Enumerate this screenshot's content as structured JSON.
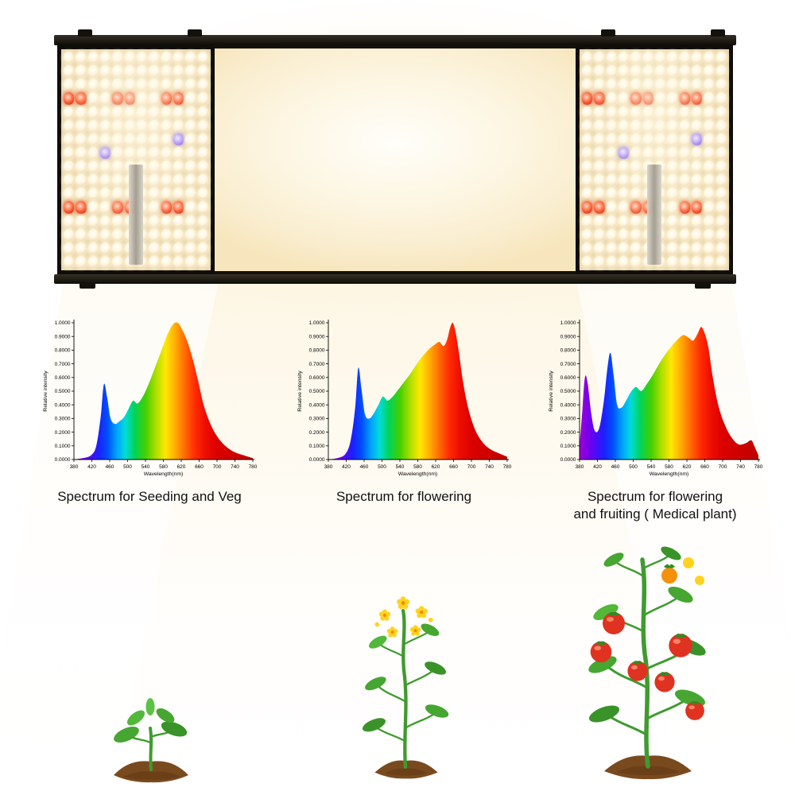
{
  "page": {
    "background": "#ffffff",
    "beam_color": "#fbeccb"
  },
  "fixture": {
    "label": "LED grow light bar with two quantum boards and central light-emitting area",
    "frame_color": "#16130e",
    "panel": {
      "rows": 16,
      "cols": 12,
      "red_rows": [
        3,
        11
      ],
      "red_cols": [
        0,
        1,
        4,
        5,
        8,
        9
      ],
      "violet_cells": [
        [
          6,
          9
        ],
        [
          7,
          3
        ]
      ],
      "board_color": "#e8d7ae",
      "led_white": "#fff6dd",
      "led_red": "#e03318",
      "strip_color": "#b7b1a4"
    }
  },
  "axis": {
    "y_ticks": [
      "0.0000",
      "0.1000",
      "0.2000",
      "0.3000",
      "0.4000",
      "0.5000",
      "0.6000",
      "0.7000",
      "0.8000",
      "0.9000",
      "1.0000"
    ],
    "x_ticks": [
      380,
      420,
      460,
      500,
      540,
      580,
      620,
      660,
      700,
      740,
      780
    ],
    "xlabel": "Wavelength(nm)",
    "ylabel": "Relative intensity"
  },
  "charts": [
    {
      "caption": "Spectrum for Seeding and Veg"
    },
    {
      "caption": "Spectrum for flowering"
    },
    {
      "caption": "Spectrum for flowering\nand fruiting ( Medical plant)"
    }
  ],
  "spectrum_gradient": [
    {
      "wl": 380,
      "color": "#a100d8"
    },
    {
      "wl": 405,
      "color": "#6a00f0"
    },
    {
      "wl": 435,
      "color": "#1a20ff"
    },
    {
      "wl": 455,
      "color": "#0050ff"
    },
    {
      "wl": 475,
      "color": "#00a0ff"
    },
    {
      "wl": 495,
      "color": "#00dcd8"
    },
    {
      "wl": 515,
      "color": "#00d35a"
    },
    {
      "wl": 540,
      "color": "#44cf00"
    },
    {
      "wl": 565,
      "color": "#b5e000"
    },
    {
      "wl": 585,
      "color": "#ffe800"
    },
    {
      "wl": 605,
      "color": "#ffb000"
    },
    {
      "wl": 625,
      "color": "#ff7300"
    },
    {
      "wl": 650,
      "color": "#ff2d00"
    },
    {
      "wl": 672,
      "color": "#ef0f00"
    },
    {
      "wl": 700,
      "color": "#dc0000"
    },
    {
      "wl": 780,
      "color": "#bf0000"
    }
  ],
  "chart_data": [
    {
      "type": "area",
      "title": "Spectrum for Seeding and Veg",
      "xlabel": "Wavelength(nm)",
      "ylabel": "Relative intensity",
      "xlim": [
        380,
        780
      ],
      "ylim": [
        0,
        1
      ],
      "x": [
        380,
        400,
        418,
        430,
        440,
        447,
        454,
        462,
        472,
        482,
        492,
        502,
        512,
        522,
        534,
        548,
        562,
        576,
        590,
        602,
        612,
        622,
        634,
        646,
        658,
        670,
        684,
        698,
        712,
        726,
        742,
        760,
        780
      ],
      "y": [
        0.0,
        0.01,
        0.03,
        0.1,
        0.32,
        0.55,
        0.46,
        0.3,
        0.26,
        0.28,
        0.31,
        0.37,
        0.43,
        0.41,
        0.46,
        0.56,
        0.68,
        0.8,
        0.92,
        0.99,
        1.0,
        0.95,
        0.86,
        0.73,
        0.57,
        0.4,
        0.27,
        0.18,
        0.12,
        0.08,
        0.05,
        0.03,
        0.01
      ]
    },
    {
      "type": "area",
      "title": "Spectrum for flowering",
      "xlabel": "Wavelength(nm)",
      "ylabel": "Relative intensity",
      "xlim": [
        380,
        780
      ],
      "ylim": [
        0,
        1
      ],
      "x": [
        380,
        400,
        418,
        430,
        440,
        447,
        454,
        462,
        472,
        482,
        492,
        502,
        512,
        524,
        536,
        550,
        564,
        578,
        592,
        606,
        618,
        628,
        638,
        646,
        652,
        658,
        664,
        672,
        682,
        694,
        708,
        724,
        740,
        758,
        780
      ],
      "y": [
        0.0,
        0.01,
        0.04,
        0.14,
        0.38,
        0.67,
        0.52,
        0.33,
        0.3,
        0.34,
        0.4,
        0.46,
        0.43,
        0.46,
        0.51,
        0.57,
        0.63,
        0.7,
        0.76,
        0.81,
        0.84,
        0.86,
        0.83,
        0.88,
        0.96,
        1.0,
        0.94,
        0.78,
        0.55,
        0.36,
        0.22,
        0.13,
        0.08,
        0.05,
        0.02
      ]
    },
    {
      "type": "area",
      "title": "Spectrum for flowering and fruiting ( Medical plant)",
      "xlabel": "Wavelength(nm)",
      "ylabel": "Relative intensity",
      "xlim": [
        380,
        780
      ],
      "ylim": [
        0,
        1
      ],
      "x": [
        380,
        386,
        392,
        398,
        406,
        414,
        424,
        434,
        442,
        449,
        456,
        464,
        474,
        484,
        494,
        506,
        518,
        530,
        544,
        558,
        572,
        586,
        600,
        612,
        624,
        634,
        644,
        652,
        660,
        668,
        678,
        690,
        704,
        720,
        736,
        752,
        764,
        772,
        780
      ],
      "y": [
        0.1,
        0.35,
        0.6,
        0.56,
        0.34,
        0.21,
        0.23,
        0.42,
        0.66,
        0.78,
        0.62,
        0.4,
        0.38,
        0.43,
        0.49,
        0.53,
        0.5,
        0.55,
        0.62,
        0.7,
        0.77,
        0.83,
        0.88,
        0.91,
        0.89,
        0.87,
        0.92,
        0.97,
        0.92,
        0.82,
        0.6,
        0.4,
        0.26,
        0.16,
        0.11,
        0.12,
        0.14,
        0.09,
        0.03
      ]
    }
  ]
}
